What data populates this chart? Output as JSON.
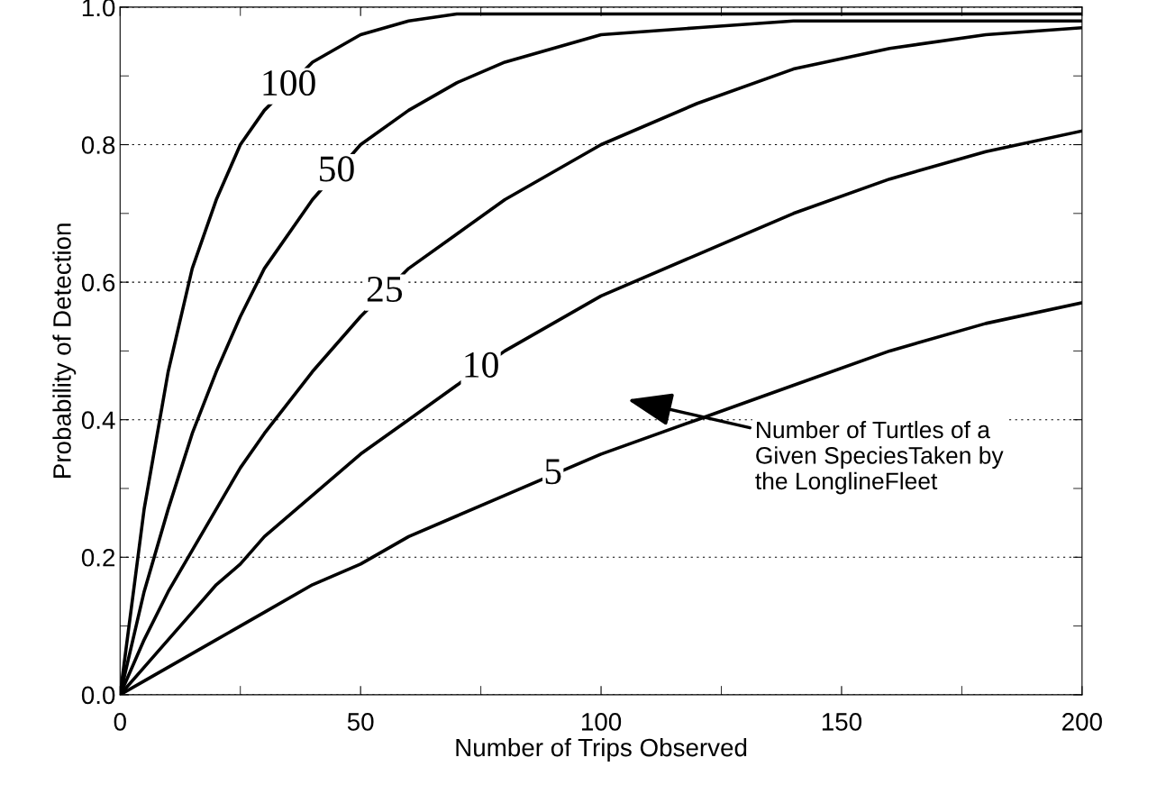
{
  "chart_data": {
    "type": "line",
    "xlabel": "Number of Trips Observed",
    "ylabel": "Probability of Detection",
    "x": [
      0,
      5,
      10,
      15,
      20,
      25,
      30,
      40,
      50,
      60,
      70,
      80,
      100,
      120,
      140,
      160,
      180,
      200
    ],
    "series": [
      {
        "name": "100",
        "color": "#000000",
        "values": [
          0,
          0.27,
          0.47,
          0.62,
          0.72,
          0.8,
          0.85,
          0.92,
          0.96,
          0.98,
          0.99,
          0.99,
          0.99,
          0.99,
          0.99,
          0.99,
          0.99,
          0.99
        ]
      },
      {
        "name": "50",
        "color": "#000000",
        "values": [
          0,
          0.15,
          0.27,
          0.38,
          0.47,
          0.55,
          0.62,
          0.72,
          0.8,
          0.85,
          0.89,
          0.92,
          0.96,
          0.97,
          0.98,
          0.98,
          0.98,
          0.98
        ]
      },
      {
        "name": "25",
        "color": "#000000",
        "values": [
          0,
          0.08,
          0.15,
          0.21,
          0.27,
          0.33,
          0.38,
          0.47,
          0.55,
          0.62,
          0.67,
          0.72,
          0.8,
          0.86,
          0.91,
          0.94,
          0.96,
          0.97
        ]
      },
      {
        "name": "10",
        "color": "#000000",
        "values": [
          0,
          0.04,
          0.08,
          0.12,
          0.16,
          0.19,
          0.23,
          0.29,
          0.35,
          0.4,
          0.45,
          0.5,
          0.58,
          0.64,
          0.7,
          0.75,
          0.79,
          0.82
        ]
      },
      {
        "name": "5",
        "color": "#000000",
        "values": [
          0,
          0.02,
          0.04,
          0.06,
          0.08,
          0.1,
          0.12,
          0.16,
          0.19,
          0.23,
          0.26,
          0.29,
          0.35,
          0.4,
          0.45,
          0.5,
          0.54,
          0.57
        ]
      }
    ],
    "xlim": [
      0,
      200
    ],
    "ylim": [
      0,
      1
    ],
    "xticks": [
      0,
      50,
      100,
      150,
      200
    ],
    "yticks": [
      {
        "value": 0,
        "label": "0.0"
      },
      {
        "value": 0.2,
        "label": "0.2"
      },
      {
        "value": 0.4,
        "label": "0.4"
      },
      {
        "value": 0.6,
        "label": "0.6"
      },
      {
        "value": 0.8,
        "label": "0.8"
      },
      {
        "value": 1,
        "label": "1.0"
      }
    ],
    "grid": "y",
    "legend": false,
    "marker": "none",
    "line_style": "solid",
    "annotations": [
      "Number of Turtles of a\nGiven SpeciesTaken by\nthe LonglineFleet"
    ]
  }
}
